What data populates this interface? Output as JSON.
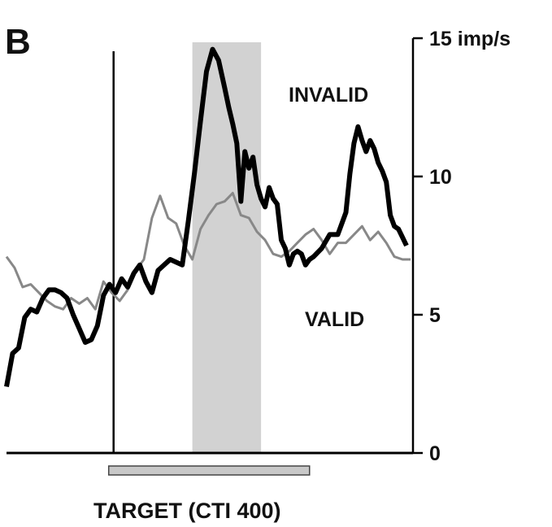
{
  "chart_data": {
    "type": "line",
    "panel_label": "B",
    "y_unit": "imp/s",
    "ylim": [
      0,
      15
    ],
    "y_ticks": [
      {
        "value": 0,
        "label": "0"
      },
      {
        "value": 5,
        "label": "5"
      },
      {
        "value": 10,
        "label": "10"
      },
      {
        "value": 15,
        "label": "15 imp/s"
      }
    ],
    "xlim": [
      0,
      100
    ],
    "target_onset": 26.5,
    "shaded_window": [
      46,
      63
    ],
    "target_bar": {
      "label": "TARGET (CTI 400)",
      "start": 26.5,
      "end": 75
    },
    "series": [
      {
        "name": "INVALID",
        "style": "thick-black",
        "x": [
          0,
          1.5,
          3,
          4.5,
          6,
          7.5,
          9,
          10.5,
          12,
          13.5,
          15,
          16.5,
          18,
          19.5,
          21,
          22.5,
          24,
          25.5,
          27,
          28.5,
          30,
          31.5,
          33,
          34.5,
          36,
          37.5,
          39,
          40.5,
          42,
          43.5,
          45,
          46.5,
          48,
          49.5,
          51,
          52.5,
          54,
          55,
          56,
          57,
          58,
          59,
          60,
          61,
          62,
          63,
          64,
          65,
          66,
          67,
          68,
          69,
          70,
          71,
          72,
          73,
          74,
          75,
          76,
          78,
          80,
          82,
          83,
          84,
          85,
          86,
          87,
          88,
          89,
          90,
          91,
          92,
          93,
          94,
          95,
          96,
          97,
          98,
          99
        ],
        "values": [
          2.4,
          3.6,
          3.8,
          4.9,
          5.2,
          5.1,
          5.6,
          5.9,
          5.9,
          5.8,
          5.6,
          5.0,
          4.5,
          4.0,
          4.1,
          4.6,
          5.7,
          6.1,
          5.8,
          6.3,
          6.0,
          6.5,
          6.8,
          6.2,
          5.8,
          6.6,
          6.8,
          7.0,
          6.9,
          6.8,
          8.4,
          10.1,
          12.0,
          13.8,
          14.6,
          14.2,
          13.2,
          12.5,
          11.9,
          11.2,
          9.1,
          10.9,
          10.3,
          10.7,
          9.7,
          9.2,
          8.9,
          9.6,
          9.2,
          9.0,
          7.7,
          7.4,
          6.8,
          7.2,
          7.3,
          7.2,
          6.8,
          7.0,
          7.1,
          7.4,
          7.9,
          7.9,
          8.3,
          8.7,
          10.1,
          11.2,
          11.8,
          11.3,
          10.9,
          11.3,
          11.0,
          10.5,
          10.2,
          9.8,
          8.6,
          8.2,
          8.1,
          7.8,
          7.5
        ]
      },
      {
        "name": "VALID",
        "style": "thin-gray",
        "x": [
          0,
          2,
          4,
          6,
          8,
          10,
          12,
          14,
          16,
          18,
          20,
          22,
          24,
          26,
          28,
          30,
          32,
          34,
          36,
          38,
          40,
          42,
          44,
          46,
          48,
          50,
          52,
          54,
          56,
          58,
          60,
          62,
          64,
          66,
          68,
          70,
          72,
          74,
          76,
          78,
          80,
          82,
          84,
          86,
          88,
          90,
          92,
          94,
          96,
          98,
          100
        ],
        "values": [
          7.1,
          6.7,
          6.0,
          6.1,
          5.8,
          5.5,
          5.3,
          5.2,
          5.6,
          5.4,
          5.6,
          5.2,
          6.2,
          5.8,
          5.5,
          5.9,
          6.6,
          7.0,
          8.5,
          9.3,
          8.5,
          8.3,
          7.5,
          7.0,
          8.1,
          8.6,
          9.0,
          9.1,
          9.4,
          8.6,
          8.5,
          8.0,
          7.7,
          7.2,
          7.1,
          7.3,
          7.6,
          7.9,
          8.1,
          7.7,
          7.2,
          7.6,
          7.6,
          7.9,
          8.2,
          7.7,
          8.0,
          7.6,
          7.1,
          7.0,
          7.0
        ]
      }
    ]
  }
}
